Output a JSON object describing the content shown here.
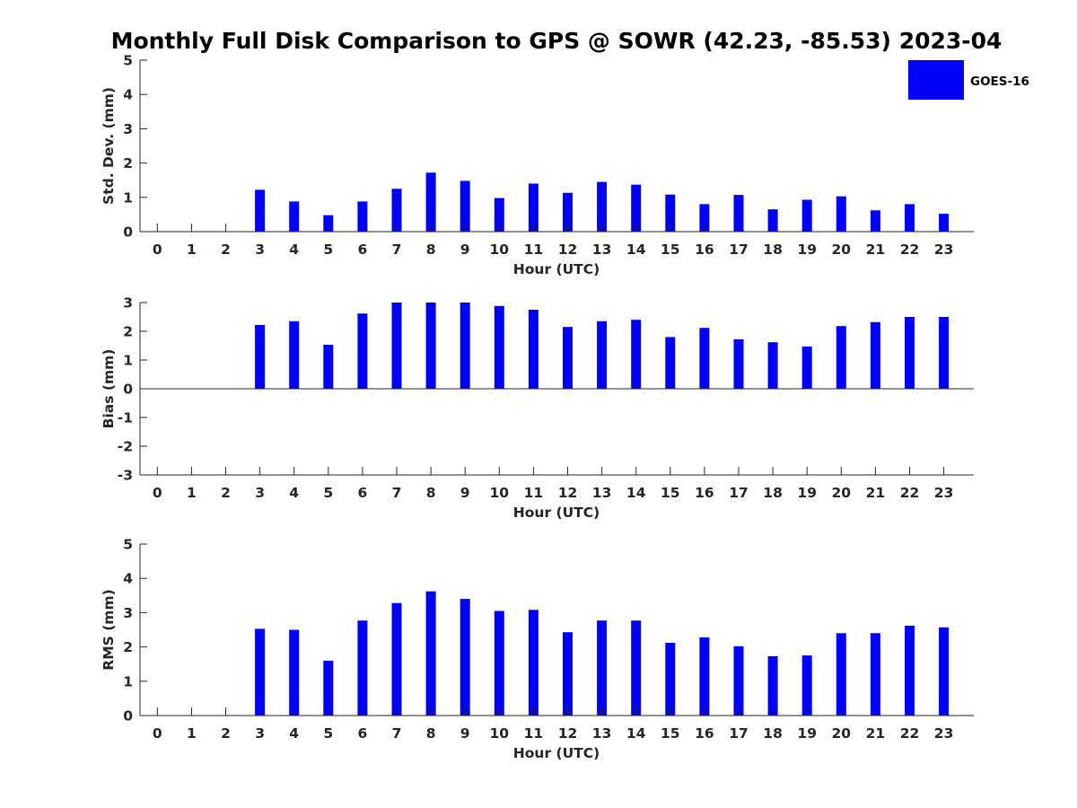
{
  "title": "Monthly Full Disk Comparison to GPS @ SOWR (42.23, -85.53) 2023-04",
  "legend": {
    "label": "GOES-16",
    "color": "#0000ff"
  },
  "chart_data": [
    {
      "type": "bar",
      "xlabel": "Hour (UTC)",
      "ylabel": "Std. Dev. (mm)",
      "ylim": [
        0,
        5
      ],
      "yticks": [
        0,
        1,
        2,
        3,
        4,
        5
      ],
      "categories": [
        "0",
        "1",
        "2",
        "3",
        "4",
        "5",
        "6",
        "7",
        "8",
        "9",
        "10",
        "11",
        "12",
        "13",
        "14",
        "15",
        "16",
        "17",
        "18",
        "19",
        "20",
        "21",
        "22",
        "23"
      ],
      "series": [
        {
          "name": "GOES-16",
          "color": "#0000ff",
          "values": [
            null,
            null,
            null,
            1.22,
            0.88,
            0.48,
            0.88,
            1.25,
            1.72,
            1.48,
            0.98,
            1.4,
            1.13,
            1.45,
            1.37,
            1.08,
            0.8,
            1.07,
            0.65,
            0.93,
            1.03,
            0.62,
            0.8,
            0.52
          ]
        }
      ],
      "grid": false
    },
    {
      "type": "bar",
      "xlabel": "Hour (UTC)",
      "ylabel": "Bias (mm)",
      "ylim": [
        -3,
        3
      ],
      "yticks": [
        -3,
        -2,
        -1,
        0,
        1,
        2,
        3
      ],
      "categories": [
        "0",
        "1",
        "2",
        "3",
        "4",
        "5",
        "6",
        "7",
        "8",
        "9",
        "10",
        "11",
        "12",
        "13",
        "14",
        "15",
        "16",
        "17",
        "18",
        "19",
        "20",
        "21",
        "22",
        "23"
      ],
      "series": [
        {
          "name": "GOES-16",
          "color": "#0000ff",
          "values": [
            null,
            null,
            null,
            2.22,
            2.35,
            1.53,
            2.62,
            3.0,
            3.0,
            3.0,
            2.88,
            2.75,
            2.15,
            2.35,
            2.4,
            1.8,
            2.12,
            1.72,
            1.62,
            1.47,
            2.18,
            2.32,
            2.5,
            2.5
          ]
        }
      ],
      "grid": false
    },
    {
      "type": "bar",
      "xlabel": "Hour (UTC)",
      "ylabel": "RMS (mm)",
      "ylim": [
        0,
        5
      ],
      "yticks": [
        0,
        1,
        2,
        3,
        4,
        5
      ],
      "categories": [
        "0",
        "1",
        "2",
        "3",
        "4",
        "5",
        "6",
        "7",
        "8",
        "9",
        "10",
        "11",
        "12",
        "13",
        "14",
        "15",
        "16",
        "17",
        "18",
        "19",
        "20",
        "21",
        "22",
        "23"
      ],
      "series": [
        {
          "name": "GOES-16",
          "color": "#0000ff",
          "values": [
            null,
            null,
            null,
            2.53,
            2.5,
            1.6,
            2.77,
            3.28,
            3.62,
            3.4,
            3.05,
            3.08,
            2.43,
            2.77,
            2.77,
            2.12,
            2.28,
            2.02,
            1.73,
            1.75,
            2.4,
            2.4,
            2.62,
            2.57
          ]
        }
      ],
      "grid": false
    }
  ]
}
